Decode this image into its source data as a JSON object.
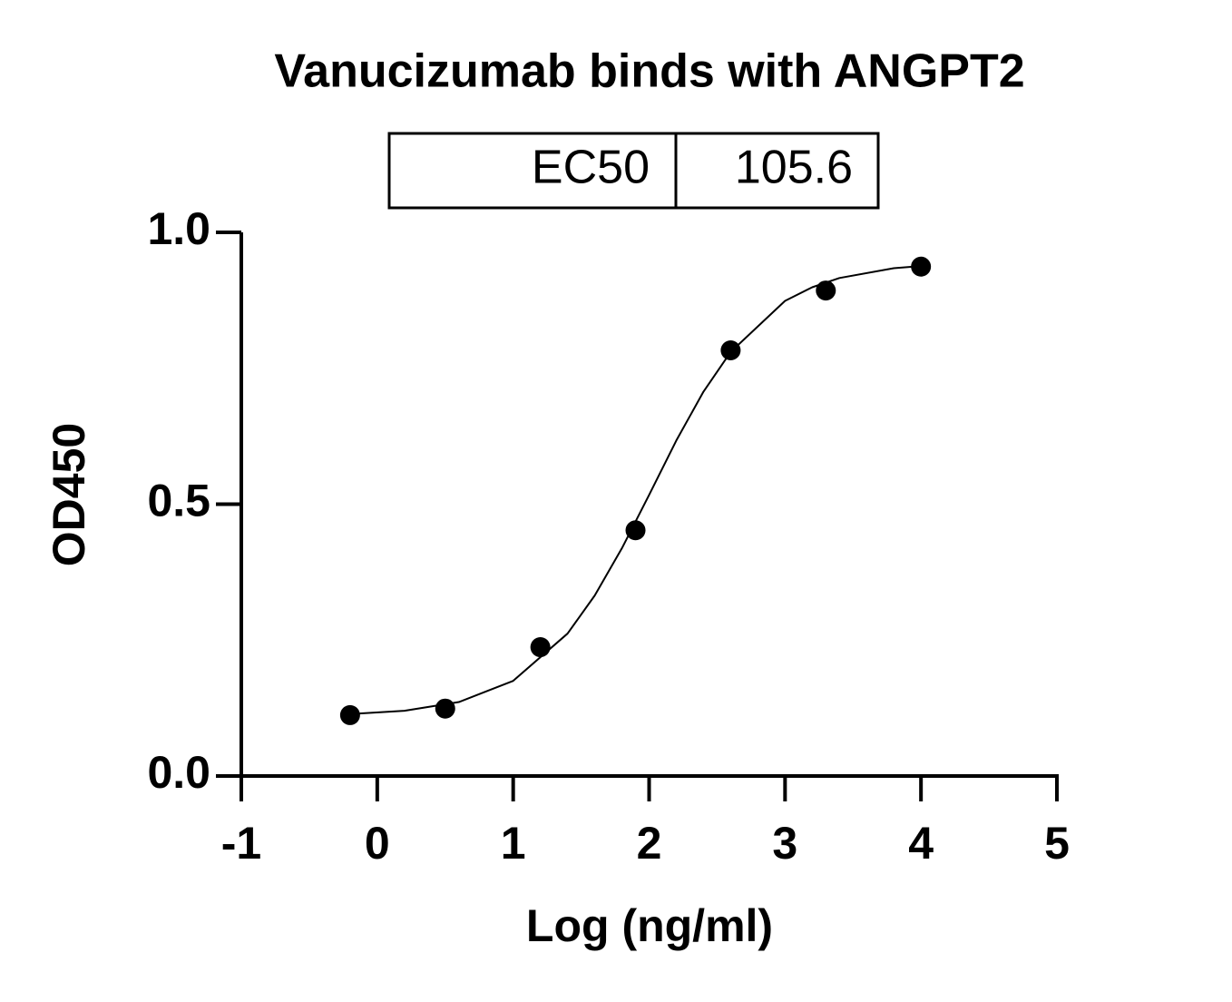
{
  "chart_data": {
    "type": "scatter",
    "title": "Vanucizumab binds with ANGPT2",
    "ec50_table": {
      "label": "EC50",
      "value": 105.6
    },
    "x_label": "Log (ng/ml)",
    "y_label": "OD450",
    "xlim": [
      -1,
      5
    ],
    "xticks": [
      -1,
      0,
      1,
      2,
      3,
      4,
      5
    ],
    "ylim": [
      0,
      1
    ],
    "yticks": [
      {
        "value": 0,
        "label": "0.0"
      },
      {
        "value": 0.5,
        "label": "0.5"
      },
      {
        "value": 1,
        "label": "1.0"
      }
    ],
    "series": [
      {
        "color": "#000000",
        "marker": "circle",
        "x": [
          -0.2,
          0.5,
          1.2,
          1.9,
          2.6,
          3.3,
          4.0
        ],
        "values": [
          0.112,
          0.124,
          0.237,
          0.452,
          0.783,
          0.893,
          0.937
        ]
      },
      {
        "color": "#000000",
        "marker": "none",
        "x": [
          -0.2,
          0.2,
          0.6,
          1.0,
          1.4,
          1.6,
          1.8,
          2.0,
          2.2,
          2.4,
          2.6,
          3.0,
          3.2,
          3.4,
          3.8,
          4.0
        ],
        "values": [
          0.114,
          0.12,
          0.136,
          0.175,
          0.262,
          0.332,
          0.419,
          0.517,
          0.617,
          0.707,
          0.78,
          0.874,
          0.899,
          0.916,
          0.934,
          0.938
        ]
      }
    ]
  }
}
